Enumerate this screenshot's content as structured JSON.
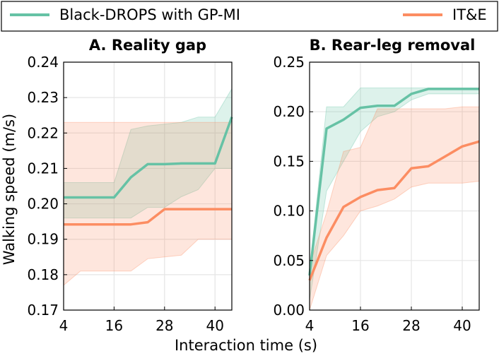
{
  "legend": {
    "items": [
      {
        "label": "Black-DROPS with GP-MI",
        "color": "#66c2a5"
      },
      {
        "label": "IT&E",
        "color": "#fc8d62"
      }
    ]
  },
  "chart_data": {
    "type": "line",
    "xlabel": "Interaction time (s)",
    "ylabel": "Walking speed (m/s)",
    "panels": [
      {
        "title": "A. Reality gap",
        "xlim": [
          4,
          44
        ],
        "ylim": [
          0.17,
          0.24
        ],
        "xticks": [
          4,
          16,
          28,
          40
        ],
        "yticks": [
          0.17,
          0.18,
          0.19,
          0.2,
          0.21,
          0.22,
          0.23,
          0.24
        ],
        "ytick_labels": [
          "0.17",
          "0.18",
          "0.19",
          "0.20",
          "0.21",
          "0.22",
          "0.23",
          "0.24"
        ],
        "series": [
          {
            "name": "Black-DROPS with GP-MI",
            "color": "#66c2a5",
            "x": [
              4,
              8,
              12,
              16,
              20,
              24,
              28,
              32,
              36,
              40,
              44
            ],
            "y": [
              0.2018,
              0.2018,
              0.2018,
              0.2018,
              0.2075,
              0.2112,
              0.2112,
              0.2114,
              0.2114,
              0.2114,
              0.2245
            ],
            "lower": [
              0.196,
              0.196,
              0.196,
              0.196,
              0.196,
              0.199,
              0.199,
              0.202,
              0.204,
              0.21,
              0.21
            ],
            "upper": [
              0.206,
              0.206,
              0.206,
              0.206,
              0.221,
              0.222,
              0.2225,
              0.223,
              0.2245,
              0.2245,
              0.2325
            ]
          },
          {
            "name": "IT&E",
            "color": "#fc8d62",
            "x": [
              4,
              8,
              12,
              16,
              20,
              24,
              28,
              32,
              36,
              40,
              44
            ],
            "y": [
              0.1942,
              0.1942,
              0.1942,
              0.1942,
              0.1942,
              0.1948,
              0.1985,
              0.1985,
              0.1985,
              0.1985,
              0.1985
            ],
            "lower": [
              0.177,
              0.181,
              0.181,
              0.181,
              0.181,
              0.1845,
              0.185,
              0.1855,
              0.19,
              0.19,
              0.19
            ],
            "upper": [
              0.223,
              0.223,
              0.223,
              0.223,
              0.223,
              0.223,
              0.223,
              0.223,
              0.223,
              0.223,
              0.223
            ]
          }
        ]
      },
      {
        "title": "B. Rear-leg removal",
        "xlim": [
          4,
          44
        ],
        "ylim": [
          0.0,
          0.25
        ],
        "xticks": [
          4,
          16,
          28,
          40
        ],
        "yticks": [
          0.0,
          0.05,
          0.1,
          0.15,
          0.2,
          0.25
        ],
        "ytick_labels": [
          "0.00",
          "0.05",
          "0.10",
          "0.15",
          "0.20",
          "0.25"
        ],
        "series": [
          {
            "name": "Black-DROPS with GP-MI",
            "color": "#66c2a5",
            "x": [
              4,
              8,
              12,
              16,
              20,
              24,
              28,
              32,
              36,
              40,
              44
            ],
            "y": [
              0.035,
              0.183,
              0.192,
              0.204,
              0.206,
              0.206,
              0.218,
              0.223,
              0.223,
              0.223,
              0.223
            ],
            "lower": [
              0.01,
              0.12,
              0.15,
              0.18,
              0.195,
              0.2,
              0.212,
              0.218,
              0.218,
              0.218,
              0.218
            ],
            "upper": [
              0.04,
              0.205,
              0.205,
              0.224,
              0.224,
              0.224,
              0.224,
              0.224,
              0.224,
              0.224,
              0.224
            ]
          },
          {
            "name": "IT&E",
            "color": "#fc8d62",
            "x": [
              4,
              8,
              12,
              16,
              20,
              24,
              28,
              32,
              36,
              40,
              44
            ],
            "y": [
              0.03,
              0.073,
              0.104,
              0.114,
              0.121,
              0.123,
              0.143,
              0.145,
              0.155,
              0.165,
              0.17
            ],
            "lower": [
              0.0,
              0.055,
              0.075,
              0.1,
              0.105,
              0.112,
              0.124,
              0.128,
              0.128,
              0.128,
              0.13
            ],
            "upper": [
              0.045,
              0.098,
              0.16,
              0.164,
              0.203,
              0.203,
              0.203,
              0.203,
              0.203,
              0.205,
              0.205
            ]
          }
        ]
      }
    ]
  }
}
